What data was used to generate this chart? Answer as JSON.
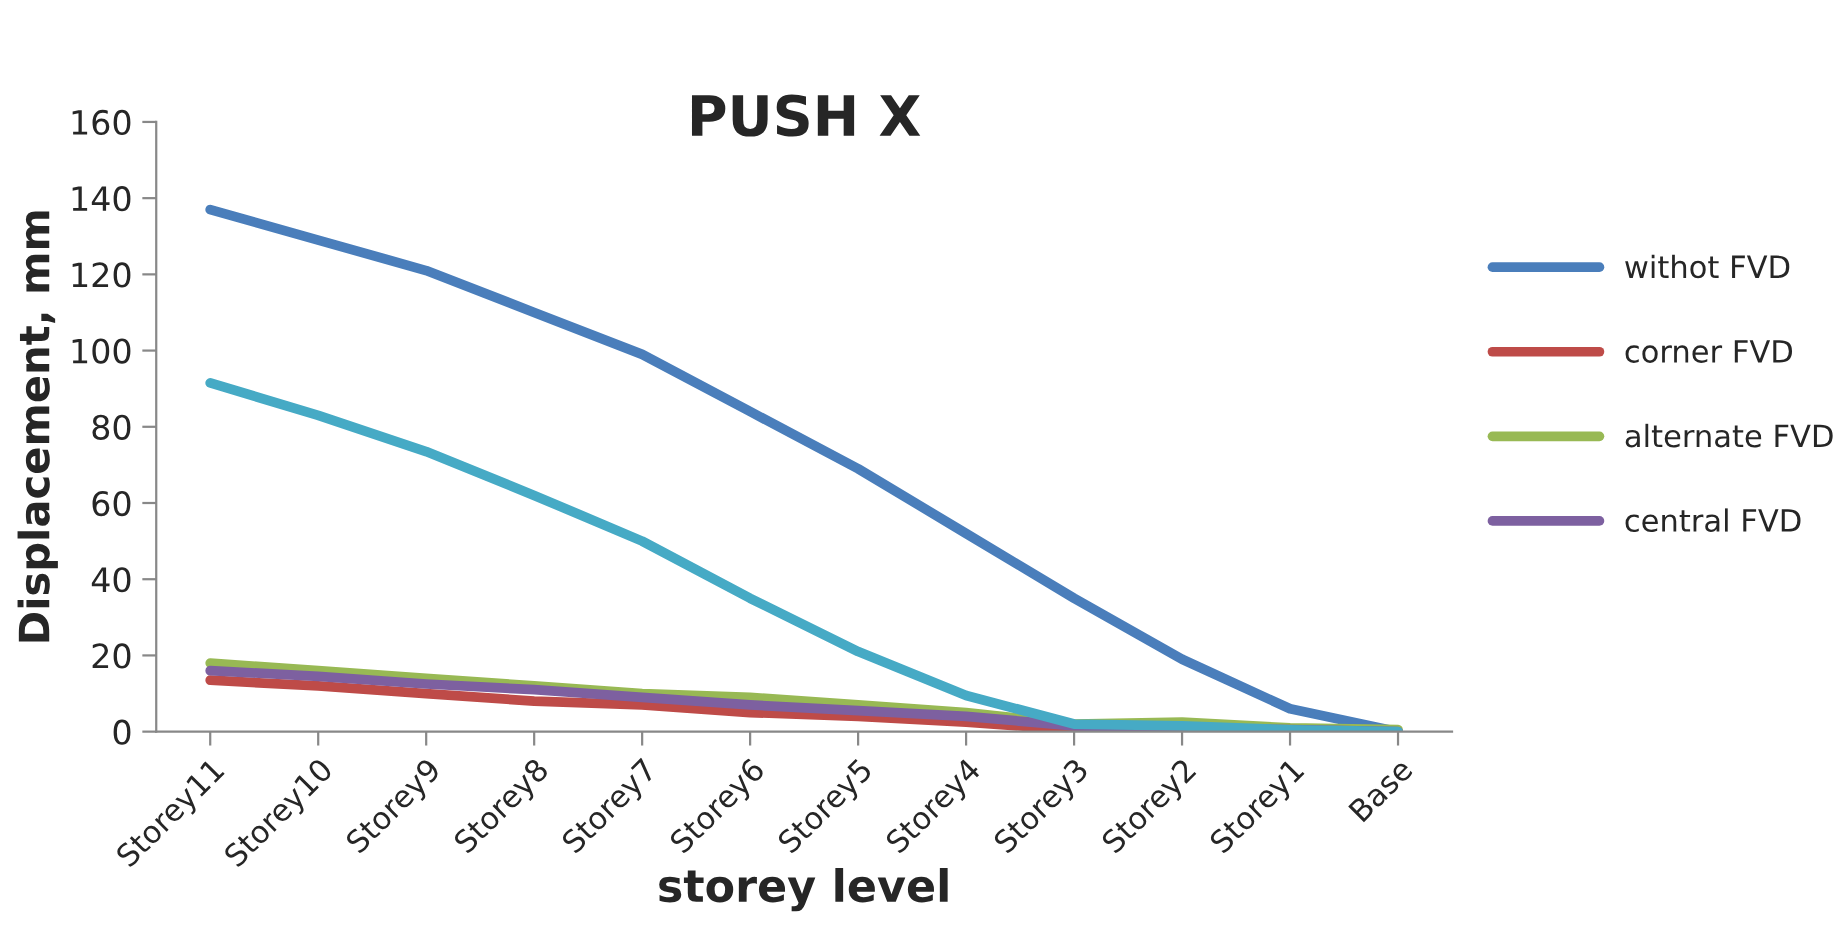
{
  "chart_data": {
    "type": "line",
    "title": "PUSH X",
    "xlabel": "storey level",
    "ylabel": "Displacement, mm",
    "categories": [
      "Storey11",
      "Storey10",
      "Storey9",
      "Storey8",
      "Storey7",
      "Storey6",
      "Storey5",
      "Storey4",
      "Storey3",
      "Storey2",
      "Storey1",
      "Base"
    ],
    "series": [
      {
        "name": "withot FVD",
        "color": "#4a7ebb",
        "values": [
          137,
          129,
          121,
          110,
          99,
          84,
          69,
          52,
          35,
          19,
          6,
          0
        ]
      },
      {
        "name": "corner FVD",
        "color": "#be4b48",
        "values": [
          13.5,
          12,
          10,
          8,
          7,
          5,
          4,
          2.5,
          0.5,
          0.5,
          null,
          null
        ]
      },
      {
        "name": "alternate FVD",
        "color": "#98b954",
        "values": [
          18,
          16,
          14,
          12,
          10,
          9,
          7,
          5,
          2,
          2.5,
          1,
          0.5
        ]
      },
      {
        "name": "central FVD",
        "color": "#7d60a0",
        "values": [
          16,
          14.5,
          12.5,
          11,
          9,
          7,
          5.5,
          4,
          1.5,
          1,
          0.5,
          0
        ]
      },
      {
        "color": "#46aac5",
        "values": [
          91.5,
          83,
          73.5,
          62,
          50,
          35,
          21,
          9.5,
          2,
          1.5,
          0.5,
          0
        ]
      }
    ],
    "ylim": [
      0,
      160
    ],
    "yticks": [
      0,
      20,
      40,
      60,
      80,
      100,
      120,
      140,
      160
    ],
    "grid": false,
    "legend": "right",
    "marker": "none",
    "line_style": "solid"
  }
}
